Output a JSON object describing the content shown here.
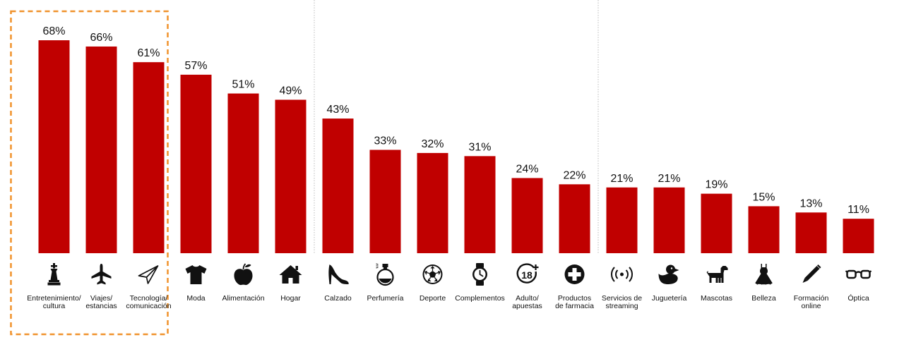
{
  "chart_data": {
    "type": "bar",
    "categories": [
      [
        "Entretenimiento/",
        "cultura"
      ],
      [
        "Viajes/",
        "estancias"
      ],
      [
        "Tecnología/",
        "comunicación"
      ],
      [
        "Moda"
      ],
      [
        "Alimentación"
      ],
      [
        "Hogar"
      ],
      [
        "Calzado"
      ],
      [
        "Perfumería"
      ],
      [
        "Deporte"
      ],
      [
        "Complementos"
      ],
      [
        "Adulto/",
        "apuestas"
      ],
      [
        "Productos",
        "de farmacia"
      ],
      [
        "Servicios de",
        "streaming"
      ],
      [
        "Juguetería"
      ],
      [
        "Mascotas"
      ],
      [
        "Belleza"
      ],
      [
        "Formación",
        "online"
      ],
      [
        "Óptica"
      ]
    ],
    "values": [
      68,
      66,
      61,
      57,
      51,
      49,
      43,
      33,
      32,
      31,
      24,
      22,
      21,
      21,
      19,
      15,
      13,
      11
    ],
    "value_labels": [
      "68%",
      "66%",
      "61%",
      "57%",
      "51%",
      "49%",
      "43%",
      "33%",
      "32%",
      "31%",
      "24%",
      "22%",
      "21%",
      "21%",
      "19%",
      "15%",
      "13%",
      "11%"
    ],
    "icons": [
      "chess-king-icon",
      "airplane-icon",
      "paper-plane-icon",
      "t-shirt-icon",
      "apple-icon",
      "house-icon",
      "high-heel-icon",
      "perfume-icon",
      "soccer-ball-icon",
      "watch-icon",
      "adult-18-icon",
      "medical-cross-icon",
      "streaming-icon",
      "rubber-duck-icon",
      "dog-icon",
      "dress-icon",
      "pencil-icon",
      "glasses-icon"
    ],
    "highlighted_categories": [
      0,
      1,
      2
    ],
    "ylim": [
      0,
      70
    ],
    "grid": false,
    "colors": {
      "bar": "#c00000",
      "highlight_box": "#f0922c",
      "separator": "#bbbbbb",
      "icon": "#111111"
    }
  }
}
